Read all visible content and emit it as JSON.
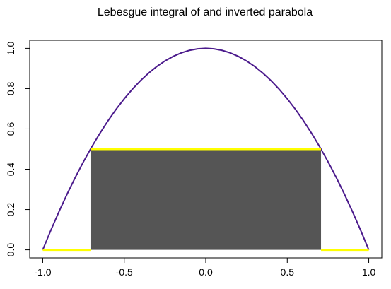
{
  "chart_data": {
    "type": "line",
    "title": "Lebesgue integral of and inverted parabola",
    "x": [
      -1,
      -0.95,
      -0.9,
      -0.85,
      -0.8,
      -0.75,
      -0.7,
      -0.65,
      -0.6,
      -0.55,
      -0.5,
      -0.45,
      -0.4,
      -0.35,
      -0.3,
      -0.25,
      -0.2,
      -0.15,
      -0.1,
      -0.05,
      0,
      0.05,
      0.1,
      0.15,
      0.2,
      0.25,
      0.3,
      0.35,
      0.4,
      0.45,
      0.5,
      0.55,
      0.6,
      0.65,
      0.7,
      0.75,
      0.8,
      0.85,
      0.9,
      0.95,
      1
    ],
    "values": [
      0,
      0.0975,
      0.19,
      0.2775,
      0.36,
      0.4375,
      0.51,
      0.5775,
      0.64,
      0.6975,
      0.75,
      0.7975,
      0.84,
      0.8775,
      0.91,
      0.9375,
      0.96,
      0.9775,
      0.99,
      0.9975,
      1,
      0.9975,
      0.99,
      0.9775,
      0.96,
      0.9375,
      0.91,
      0.8775,
      0.84,
      0.7975,
      0.75,
      0.6975,
      0.64,
      0.5775,
      0.51,
      0.4375,
      0.36,
      0.2775,
      0.19,
      0.0975,
      0
    ],
    "color": "#4b1a8c",
    "bar": {
      "x": [
        -0.7071,
        0.7071
      ],
      "value": 0.5,
      "color": "#555555"
    },
    "segments": [
      {
        "x": [
          -1,
          -0.7071
        ],
        "values": [
          0,
          0
        ]
      },
      {
        "x": [
          -0.7071,
          0.7071
        ],
        "values": [
          0.5,
          0.5
        ]
      },
      {
        "x": [
          0.7071,
          1
        ],
        "values": [
          0,
          0
        ]
      }
    ],
    "segment_color": "#ffff00",
    "xlim": [
      -1.08,
      1.08
    ],
    "ylim": [
      -0.04,
      1.04
    ],
    "xticks": [
      {
        "value": -1,
        "label": "-1.0"
      },
      {
        "value": -0.5,
        "label": "-0.5"
      },
      {
        "value": 0,
        "label": "0.0"
      },
      {
        "value": 0.5,
        "label": "0.5"
      },
      {
        "value": 1,
        "label": "1.0"
      }
    ],
    "yticks": [
      {
        "value": 0,
        "label": "0.0"
      },
      {
        "value": 0.2,
        "label": "0.2"
      },
      {
        "value": 0.4,
        "label": "0.4"
      },
      {
        "value": 0.6,
        "label": "0.6"
      },
      {
        "value": 0.8,
        "label": "0.8"
      },
      {
        "value": 1,
        "label": "1.0"
      }
    ]
  }
}
